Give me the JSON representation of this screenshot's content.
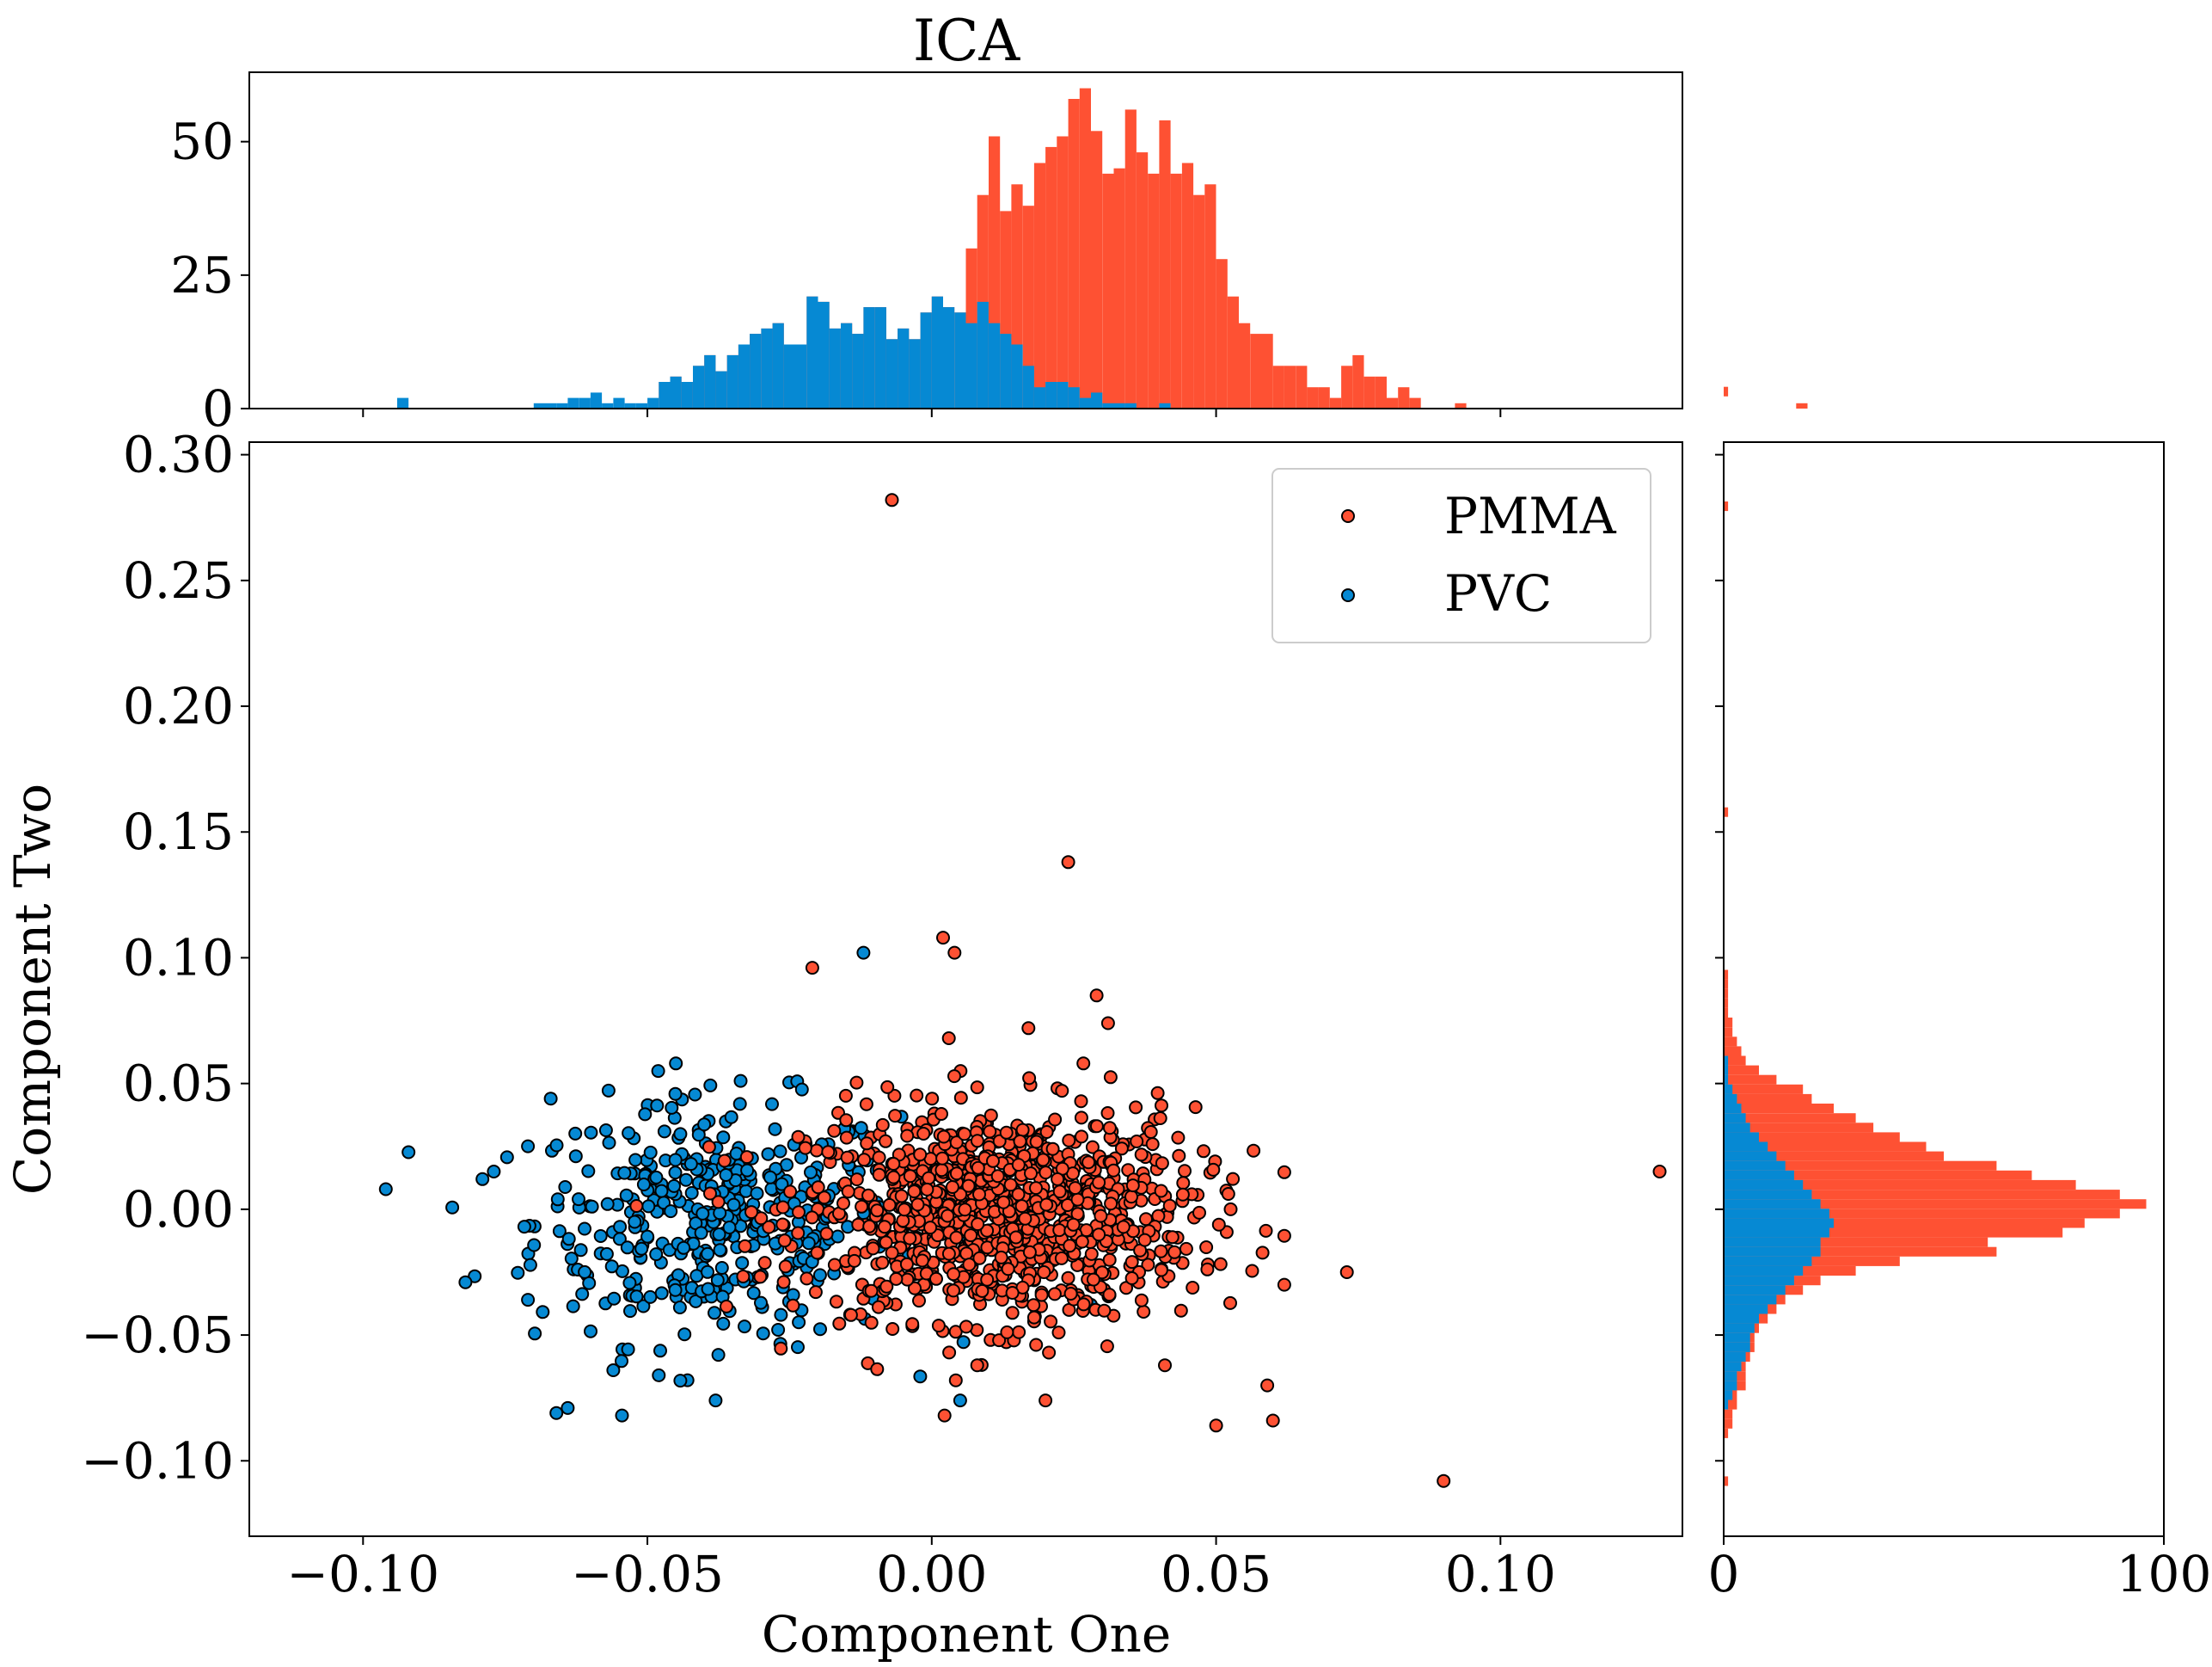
{
  "chart_data": {
    "type": "scatter",
    "title": "ICA",
    "xlabel": "Component One",
    "ylabel": "Component Two",
    "xlim": [
      -0.12,
      0.132
    ],
    "ylim": [
      -0.13,
      0.305
    ],
    "x_ticks": [
      -0.1,
      -0.05,
      0.0,
      0.05,
      0.1
    ],
    "x_tick_labels": [
      "−0.10",
      "−0.05",
      "0.00",
      "0.05",
      "0.10"
    ],
    "y_ticks": [
      -0.1,
      -0.05,
      0.0,
      0.05,
      0.1,
      0.15,
      0.2,
      0.25,
      0.3
    ],
    "y_tick_labels": [
      "−0.10",
      "−0.05",
      "0.00",
      "0.05",
      "0.10",
      "0.15",
      "0.20",
      "0.25",
      "0.30"
    ],
    "grid": false,
    "legend": {
      "position": "upper-right",
      "entries": [
        {
          "label": "PMMA",
          "color": "#fe5133"
        },
        {
          "label": "PVC",
          "color": "#0689d3"
        }
      ]
    },
    "series": [
      {
        "name": "PMMA",
        "color": "#fe5133",
        "center": [
          0.012,
          -0.002
        ],
        "spread": [
          0.017,
          0.021
        ],
        "count": 1050,
        "outliers": [
          [
            -0.007,
            0.282
          ],
          [
            0.024,
            0.138
          ],
          [
            0.002,
            0.108
          ],
          [
            0.004,
            0.102
          ],
          [
            -0.021,
            0.096
          ],
          [
            0.029,
            0.085
          ],
          [
            0.031,
            0.074
          ],
          [
            0.017,
            0.072
          ],
          [
            0.003,
            0.068
          ],
          [
            0.128,
            0.015
          ],
          [
            0.073,
            -0.025
          ],
          [
            0.062,
            -0.03
          ],
          [
            0.09,
            -0.108
          ],
          [
            0.05,
            -0.086
          ],
          [
            0.06,
            -0.084
          ],
          [
            0.008,
            -0.062
          ],
          [
            0.059,
            -0.07
          ],
          [
            0.041,
            -0.062
          ],
          [
            0.02,
            -0.076
          ]
        ]
      },
      {
        "name": "PVC",
        "color": "#0689d3",
        "center": [
          -0.038,
          -0.005
        ],
        "spread": [
          0.016,
          0.024
        ],
        "count": 420,
        "outliers": [
          [
            -0.096,
            0.008
          ],
          [
            -0.082,
            -0.029
          ],
          [
            -0.066,
            -0.081
          ],
          [
            -0.064,
            -0.079
          ],
          [
            -0.067,
            0.044
          ],
          [
            -0.012,
            0.102
          ],
          [
            -0.077,
            0.015
          ],
          [
            -0.079,
            0.012
          ],
          [
            -0.056,
            -0.064
          ],
          [
            -0.038,
            -0.076
          ],
          [
            0.005,
            -0.076
          ],
          [
            0.028,
            -0.038
          ],
          [
            -0.071,
            -0.036
          ],
          [
            -0.048,
            -0.066
          ]
        ]
      }
    ],
    "top_histogram": {
      "xlabel": "",
      "ylabel": "",
      "ylim": [
        0,
        63
      ],
      "y_ticks": [
        0,
        25,
        50
      ],
      "y_tick_labels": [
        "0",
        "25",
        "50"
      ],
      "bin_start": -0.096,
      "bin_width": 0.002,
      "PMMA_total": [
        0,
        0,
        0,
        0,
        0,
        0,
        0,
        0,
        0,
        0,
        0,
        0,
        0,
        0,
        0,
        0,
        0,
        0,
        0,
        0,
        0,
        0,
        0,
        0,
        5,
        6,
        5,
        8,
        10,
        7,
        10,
        12,
        14,
        15,
        16,
        12,
        12,
        21,
        20,
        15,
        16,
        14,
        19,
        19,
        13,
        15,
        13,
        18,
        21,
        19,
        18,
        30,
        40,
        51,
        37,
        42,
        38,
        46,
        49,
        51,
        58,
        60,
        52,
        44,
        45,
        56,
        48,
        44,
        54,
        44,
        46,
        40,
        42,
        28,
        21,
        16,
        14,
        14,
        8,
        8,
        8,
        4,
        4,
        2,
        8,
        10,
        6,
        6,
        2,
        4,
        2,
        0,
        0,
        0,
        1,
        0,
        0,
        0,
        0,
        0,
        0,
        0,
        0,
        0,
        0,
        0,
        0,
        0,
        0,
        0,
        0,
        0,
        0,
        0,
        0,
        0,
        0,
        0,
        0,
        0,
        0,
        0,
        0,
        0,
        1
      ],
      "PVC": [
        0,
        2,
        0,
        0,
        0,
        0,
        0,
        0,
        0,
        0,
        0,
        0,
        0,
        1,
        1,
        1,
        2,
        2,
        3,
        1,
        2,
        1,
        1,
        2,
        5,
        6,
        5,
        8,
        10,
        7,
        10,
        12,
        14,
        15,
        16,
        12,
        12,
        21,
        20,
        15,
        16,
        14,
        19,
        19,
        13,
        15,
        13,
        18,
        21,
        19,
        18,
        16,
        20,
        16,
        14,
        12,
        8,
        4,
        5,
        5,
        4,
        2,
        3,
        1,
        1,
        1,
        0,
        0,
        1,
        0,
        0,
        0,
        0,
        0,
        0,
        0,
        0,
        0,
        0,
        0,
        0,
        0,
        0,
        0,
        0,
        0,
        0,
        0,
        0,
        0,
        0,
        0,
        0,
        0,
        0,
        0,
        0,
        0,
        0,
        0,
        0,
        0,
        0,
        0,
        0,
        0,
        0,
        0,
        0,
        0,
        0,
        0,
        0,
        0,
        0,
        0,
        0,
        0,
        0,
        0,
        0
      ]
    },
    "right_histogram": {
      "xlabel": "",
      "ylabel": "",
      "xlim": [
        0,
        100
      ],
      "x_ticks": [
        0,
        100
      ],
      "x_tick_labels": [
        "0",
        "100"
      ],
      "bin_start": -0.11,
      "bin_width": 0.0038,
      "PMMA_total": [
        1,
        0,
        0,
        0,
        0,
        1,
        2,
        2,
        3,
        3,
        5,
        5,
        5,
        6,
        7,
        7,
        8,
        10,
        12,
        14,
        18,
        22,
        30,
        40,
        62,
        60,
        77,
        82,
        90,
        96,
        90,
        80,
        70,
        62,
        50,
        46,
        40,
        34,
        30,
        25,
        20,
        18,
        12,
        8,
        5,
        4,
        3,
        2,
        2,
        1,
        1,
        1,
        1,
        1,
        0,
        0,
        0,
        0,
        0,
        0,
        0,
        0,
        0,
        0,
        0,
        0,
        0,
        0,
        0,
        0,
        1,
        0,
        0,
        0,
        0,
        0,
        0,
        0,
        0,
        0,
        0,
        0,
        0,
        0,
        0,
        0,
        0,
        0,
        0,
        0,
        0,
        0,
        0,
        0,
        0,
        0,
        0,
        0,
        0,
        0,
        0,
        0,
        1,
        0,
        0,
        0,
        0,
        0,
        0,
        0,
        0,
        0,
        0,
        0,
        1
      ],
      "PVC": [
        0,
        0,
        0,
        0,
        0,
        0,
        0,
        0,
        1,
        2,
        3,
        3,
        4,
        5,
        6,
        6,
        7,
        8,
        10,
        12,
        14,
        16,
        18,
        20,
        22,
        22,
        24,
        25,
        24,
        22,
        20,
        18,
        16,
        14,
        12,
        10,
        8,
        6,
        5,
        4,
        3,
        2,
        1,
        1,
        1,
        0,
        0,
        0,
        0,
        0,
        0,
        0,
        0,
        0,
        0,
        0,
        0,
        0,
        0,
        0,
        0,
        0,
        0,
        0,
        0,
        0,
        0,
        0,
        0,
        0,
        0,
        0,
        0,
        0,
        0,
        0,
        0,
        0,
        0,
        0,
        0,
        0,
        0,
        0,
        0,
        0,
        0,
        0,
        0,
        0,
        0,
        0,
        0,
        0,
        0,
        0,
        0,
        0,
        0,
        0,
        0,
        0,
        0,
        0,
        0,
        0,
        0,
        0,
        0,
        0,
        0,
        0,
        0,
        0,
        0
      ]
    }
  }
}
